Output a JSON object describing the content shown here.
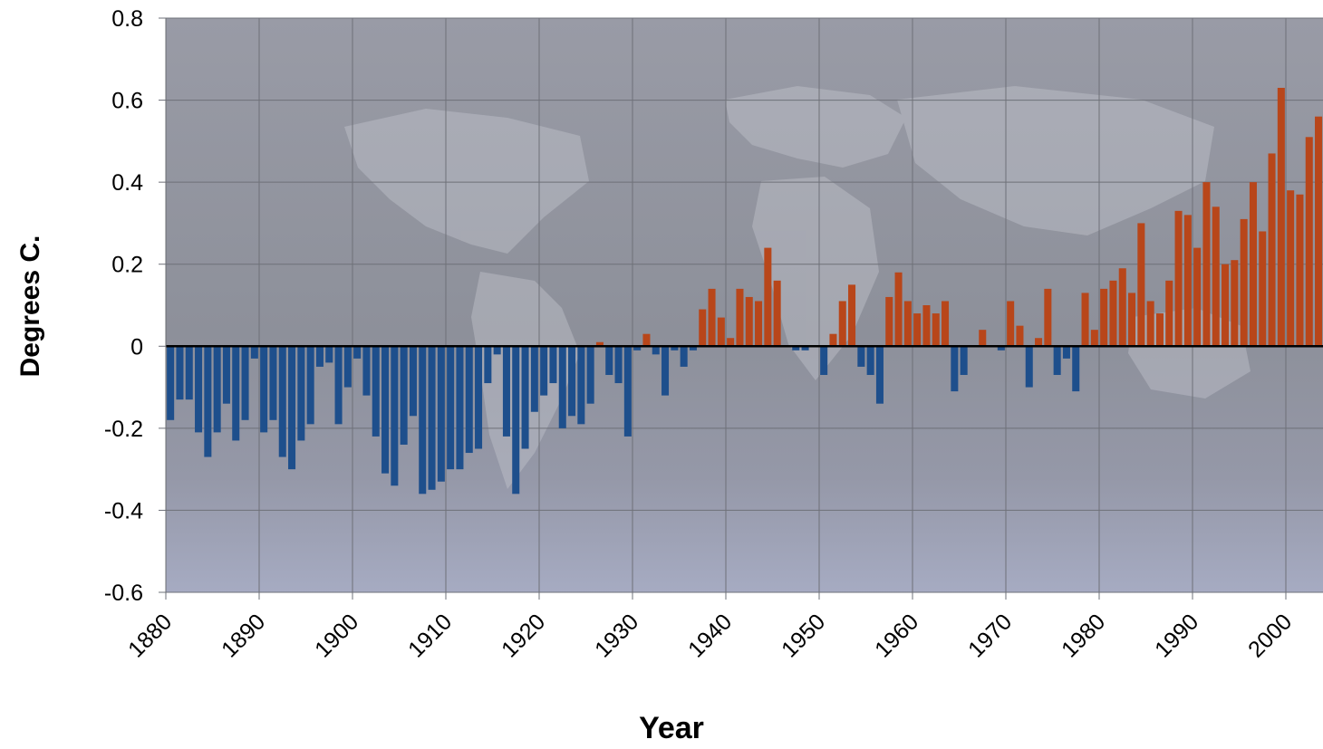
{
  "chart_data": {
    "type": "bar",
    "title": "",
    "xlabel": "Year",
    "ylabel": "Degrees C.",
    "ylim": [
      -0.6,
      0.8
    ],
    "xlim": [
      1880,
      2005
    ],
    "x_ticks": [
      "1880",
      "1890",
      "1900",
      "1910",
      "1920",
      "1930",
      "1940",
      "1950",
      "1960",
      "1970",
      "1980",
      "1990",
      "2000"
    ],
    "y_ticks": [
      "-0.6",
      "-0.4",
      "-0.2",
      "0",
      "0.2",
      "0.4",
      "0.6",
      "0.8"
    ],
    "grid": true,
    "colors": {
      "negative": "#1e4f8c",
      "positive": "#b8461a",
      "plot_bg": "#8f95a6",
      "zero_line": "#000000"
    },
    "series": [
      {
        "x": [
          1880,
          1881,
          1882,
          1883,
          1884,
          1885,
          1886,
          1887,
          1888,
          1889,
          1890,
          1891,
          1892,
          1893,
          1894,
          1895,
          1896,
          1897,
          1898,
          1899,
          1900,
          1901,
          1902,
          1903,
          1904,
          1905,
          1906,
          1907,
          1908,
          1909,
          1910,
          1911,
          1912,
          1913,
          1914,
          1915,
          1916,
          1917,
          1918,
          1919,
          1920,
          1921,
          1922,
          1923,
          1924,
          1925,
          1926,
          1927,
          1928,
          1929,
          1930,
          1931,
          1932,
          1933,
          1934,
          1935,
          1936,
          1937,
          1938,
          1939,
          1940,
          1941,
          1942,
          1943,
          1944,
          1945,
          1946,
          1947,
          1948,
          1949,
          1950,
          1951,
          1952,
          1953,
          1954,
          1955,
          1956,
          1957,
          1958,
          1959,
          1960,
          1961,
          1962,
          1963,
          1964,
          1965,
          1966,
          1967,
          1968,
          1969,
          1970,
          1971,
          1972,
          1973,
          1974,
          1975,
          1976,
          1977,
          1978,
          1979,
          1980,
          1981,
          1982,
          1983,
          1984,
          1985,
          1986,
          1987,
          1988,
          1989,
          1990,
          1991,
          1992,
          1993,
          1994,
          1995,
          1996,
          1997,
          1998,
          1999,
          2000,
          2001,
          2002,
          2003,
          2004
        ],
        "values": [
          -0.18,
          -0.13,
          -0.13,
          -0.21,
          -0.27,
          -0.21,
          -0.14,
          -0.23,
          -0.18,
          -0.03,
          -0.21,
          -0.18,
          -0.27,
          -0.3,
          -0.23,
          -0.19,
          -0.05,
          -0.04,
          -0.19,
          -0.1,
          -0.03,
          -0.12,
          -0.22,
          -0.31,
          -0.34,
          -0.24,
          -0.17,
          -0.36,
          -0.35,
          -0.33,
          -0.3,
          -0.3,
          -0.26,
          -0.25,
          -0.09,
          -0.02,
          -0.22,
          -0.36,
          -0.25,
          -0.16,
          -0.12,
          -0.09,
          -0.2,
          -0.17,
          -0.19,
          -0.14,
          0.01,
          -0.07,
          -0.09,
          -0.22,
          -0.01,
          0.03,
          -0.02,
          -0.12,
          -0.01,
          -0.05,
          -0.01,
          0.09,
          0.14,
          0.07,
          0.02,
          0.14,
          0.12,
          0.11,
          0.24,
          0.16,
          0.0,
          -0.01,
          -0.01,
          0.0,
          -0.07,
          0.03,
          0.11,
          0.15,
          -0.05,
          -0.07,
          -0.14,
          0.12,
          0.18,
          0.11,
          0.08,
          0.1,
          0.08,
          0.11,
          -0.11,
          -0.07,
          0.0,
          0.04,
          0.0,
          -0.01,
          0.11,
          0.05,
          -0.1,
          0.02,
          0.14,
          -0.07,
          -0.03,
          -0.11,
          0.13,
          0.04,
          0.14,
          0.16,
          0.19,
          0.13,
          0.3,
          0.11,
          0.08,
          0.16,
          0.33,
          0.32,
          0.24,
          0.4,
          0.34,
          0.2,
          0.21,
          0.31,
          0.4,
          0.28,
          0.47,
          0.63,
          0.38,
          0.37,
          0.51,
          0.56,
          0.56
        ]
      }
    ]
  }
}
